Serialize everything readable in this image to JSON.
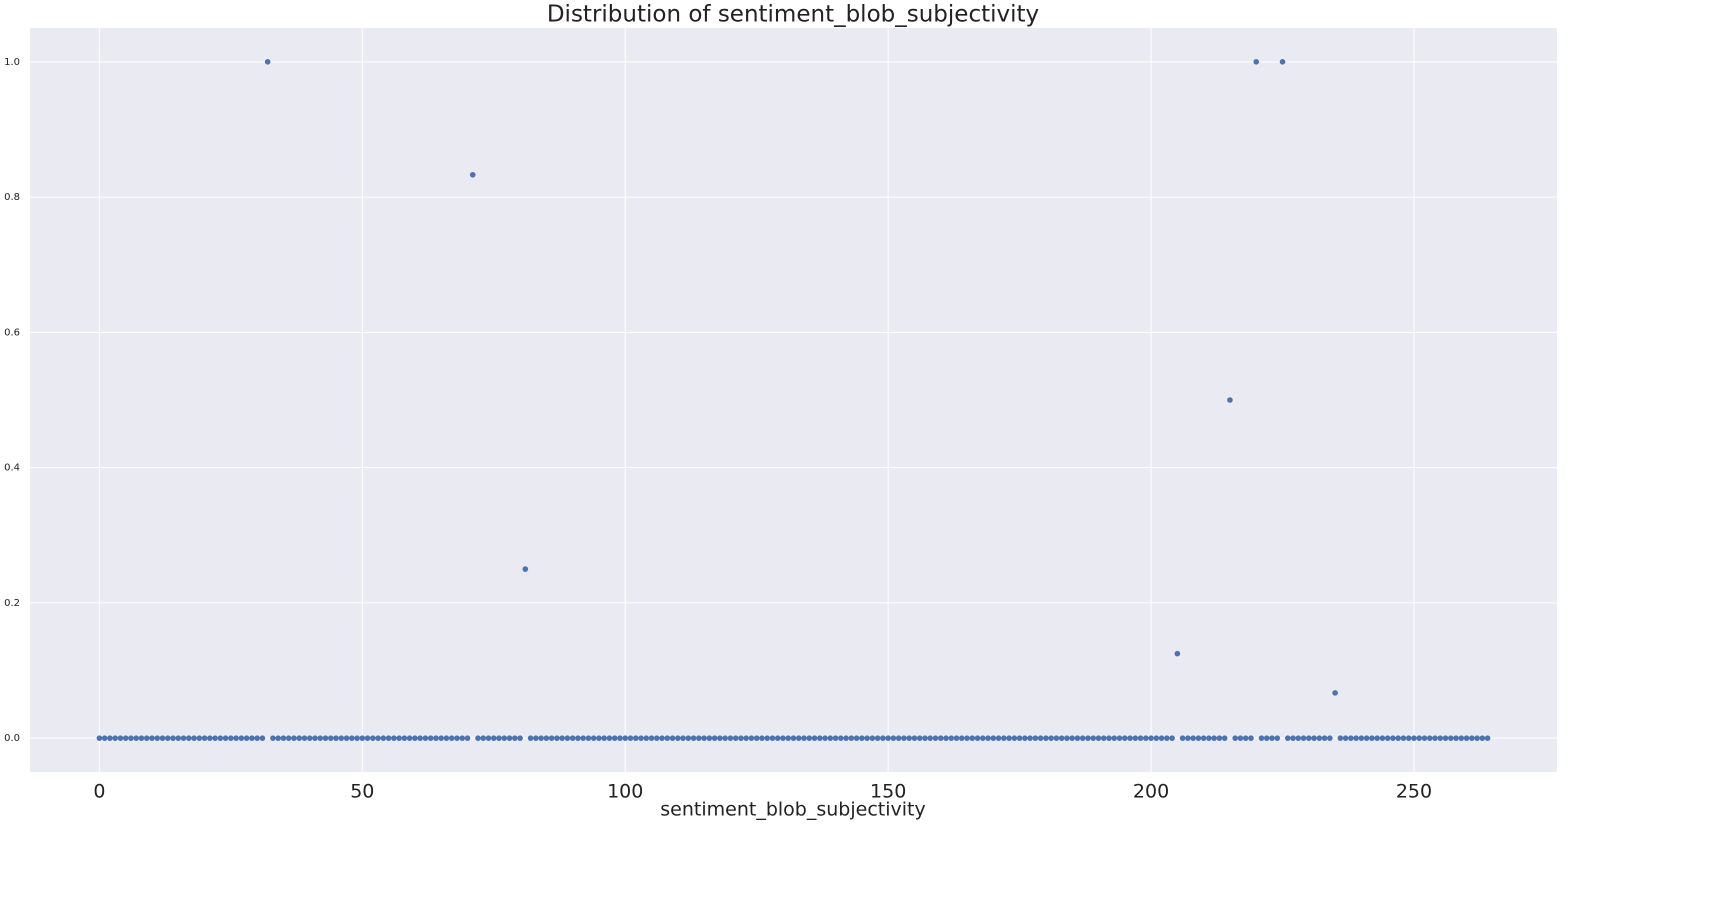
{
  "chart_data": {
    "type": "scatter",
    "title": "Distribution of sentiment_blob_subjectivity",
    "x_label": "sentiment_blob_subjectivity",
    "color": "#4c72b0",
    "grid": true,
    "xlim": [
      -13.2,
      277.2
    ],
    "ylim": [
      -0.05,
      1.05
    ],
    "xticks": [
      0,
      50,
      100,
      150,
      200,
      250
    ],
    "yticks": [
      {
        "value": 0,
        "label": "0.0"
      },
      0.2,
      0.4,
      0.6,
      0.8,
      {
        "value": 1,
        "label": "1.0"
      }
    ],
    "x": [
      0,
      1,
      2,
      3,
      4,
      5,
      6,
      7,
      8,
      9,
      10,
      11,
      12,
      13,
      14,
      15,
      16,
      17,
      18,
      19,
      20,
      21,
      22,
      23,
      24,
      25,
      26,
      27,
      28,
      29,
      30,
      31,
      32,
      33,
      34,
      35,
      36,
      37,
      38,
      39,
      40,
      41,
      42,
      43,
      44,
      45,
      46,
      47,
      48,
      49,
      50,
      51,
      52,
      53,
      54,
      55,
      56,
      57,
      58,
      59,
      60,
      61,
      62,
      63,
      64,
      65,
      66,
      67,
      68,
      69,
      70,
      71,
      72,
      73,
      74,
      75,
      76,
      77,
      78,
      79,
      80,
      81,
      82,
      83,
      84,
      85,
      86,
      87,
      88,
      89,
      90,
      91,
      92,
      93,
      94,
      95,
      96,
      97,
      98,
      99,
      100,
      101,
      102,
      103,
      104,
      105,
      106,
      107,
      108,
      109,
      110,
      111,
      112,
      113,
      114,
      115,
      116,
      117,
      118,
      119,
      120,
      121,
      122,
      123,
      124,
      125,
      126,
      127,
      128,
      129,
      130,
      131,
      132,
      133,
      134,
      135,
      136,
      137,
      138,
      139,
      140,
      141,
      142,
      143,
      144,
      145,
      146,
      147,
      148,
      149,
      150,
      151,
      152,
      153,
      154,
      155,
      156,
      157,
      158,
      159,
      160,
      161,
      162,
      163,
      164,
      165,
      166,
      167,
      168,
      169,
      170,
      171,
      172,
      173,
      174,
      175,
      176,
      177,
      178,
      179,
      180,
      181,
      182,
      183,
      184,
      185,
      186,
      187,
      188,
      189,
      190,
      191,
      192,
      193,
      194,
      195,
      196,
      197,
      198,
      199,
      200,
      201,
      202,
      203,
      204,
      205,
      206,
      207,
      208,
      209,
      210,
      211,
      212,
      213,
      214,
      215,
      216,
      217,
      218,
      219,
      220,
      221,
      222,
      223,
      224,
      225,
      226,
      227,
      228,
      229,
      230,
      231,
      232,
      233,
      234,
      235,
      236,
      237,
      238,
      239,
      240,
      241,
      242,
      243,
      244,
      245,
      246,
      247,
      248,
      249,
      250,
      251,
      252,
      253,
      254,
      255,
      256,
      257,
      258,
      259,
      260,
      261,
      262,
      263,
      264
    ],
    "values": [
      0,
      0,
      0,
      0,
      0,
      0,
      0,
      0,
      0,
      0,
      0,
      0,
      0,
      0,
      0,
      0,
      0,
      0,
      0,
      0,
      0,
      0,
      0,
      0,
      0,
      0,
      0,
      0,
      0,
      0,
      0,
      0,
      1,
      0,
      0,
      0,
      0,
      0,
      0,
      0,
      0,
      0,
      0,
      0,
      0,
      0,
      0,
      0,
      0,
      0,
      0,
      0,
      0,
      0,
      0,
      0,
      0,
      0,
      0,
      0,
      0,
      0,
      0,
      0,
      0,
      0,
      0,
      0,
      0,
      0,
      0,
      0.833,
      0,
      0,
      0,
      0,
      0,
      0,
      0,
      0,
      0,
      0.25,
      0,
      0,
      0,
      0,
      0,
      0,
      0,
      0,
      0,
      0,
      0,
      0,
      0,
      0,
      0,
      0,
      0,
      0,
      0,
      0,
      0,
      0,
      0,
      0,
      0,
      0,
      0,
      0,
      0,
      0,
      0,
      0,
      0,
      0,
      0,
      0,
      0,
      0,
      0,
      0,
      0,
      0,
      0,
      0,
      0,
      0,
      0,
      0,
      0,
      0,
      0,
      0,
      0,
      0,
      0,
      0,
      0,
      0,
      0,
      0,
      0,
      0,
      0,
      0,
      0,
      0,
      0,
      0,
      0,
      0,
      0,
      0,
      0,
      0,
      0,
      0,
      0,
      0,
      0,
      0,
      0,
      0,
      0,
      0,
      0,
      0,
      0,
      0,
      0,
      0,
      0,
      0,
      0,
      0,
      0,
      0,
      0,
      0,
      0,
      0,
      0,
      0,
      0,
      0,
      0,
      0,
      0,
      0,
      0,
      0,
      0,
      0,
      0,
      0,
      0,
      0,
      0,
      0,
      0,
      0,
      0,
      0,
      0,
      0.125,
      0,
      0,
      0,
      0,
      0,
      0,
      0,
      0,
      0,
      0.5,
      0,
      0,
      0,
      0,
      1,
      0,
      0,
      0,
      0,
      1,
      0,
      0,
      0,
      0,
      0,
      0,
      0,
      0,
      0,
      0.067,
      0,
      0,
      0,
      0,
      0,
      0,
      0,
      0,
      0,
      0,
      0,
      0,
      0,
      0,
      0,
      0,
      0,
      0,
      0,
      0,
      0,
      0,
      0,
      0,
      0,
      0,
      0,
      0,
      0
    ]
  }
}
